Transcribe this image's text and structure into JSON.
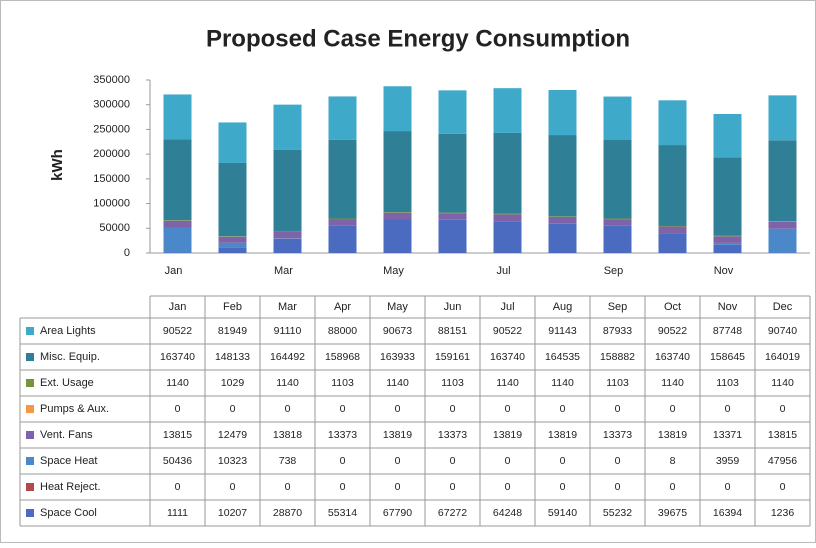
{
  "chart_data": {
    "type": "stacked_bar",
    "title": "Proposed Case Energy Consumption",
    "y_label": "kWh",
    "categories": [
      "Jan",
      "Feb",
      "Mar",
      "Apr",
      "May",
      "Jun",
      "Jul",
      "Aug",
      "Sep",
      "Oct",
      "Nov",
      "Dec"
    ],
    "ylim": [
      0,
      350000
    ],
    "yticks": [
      0,
      50000,
      100000,
      150000,
      200000,
      250000,
      300000,
      350000
    ],
    "series": [
      {
        "name": "Area Lights",
        "color": "#3fa9c9",
        "values": [
          90522,
          81949,
          91110,
          88000,
          90673,
          88151,
          90522,
          91143,
          87933,
          90522,
          87748,
          90740
        ]
      },
      {
        "name": "Misc. Equip.",
        "color": "#2f8096",
        "values": [
          163740,
          148133,
          164492,
          158968,
          163933,
          159161,
          163740,
          164535,
          158882,
          163740,
          158645,
          164019
        ]
      },
      {
        "name": "Ext. Usage",
        "color": "#77933c",
        "values": [
          1140,
          1029,
          1140,
          1103,
          1140,
          1103,
          1140,
          1140,
          1103,
          1140,
          1103,
          1140
        ]
      },
      {
        "name": "Pumps & Aux.",
        "color": "#f79646",
        "values": [
          0,
          0,
          0,
          0,
          0,
          0,
          0,
          0,
          0,
          0,
          0,
          0
        ]
      },
      {
        "name": "Vent. Fans",
        "color": "#7f63a8",
        "values": [
          13815,
          12479,
          13818,
          13373,
          13819,
          13373,
          13819,
          13819,
          13373,
          13819,
          13371,
          13815
        ]
      },
      {
        "name": "Space Heat",
        "color": "#4a88c9",
        "values": [
          50436,
          10323,
          738,
          0,
          0,
          0,
          0,
          0,
          0,
          8,
          3959,
          47956
        ]
      },
      {
        "name": "Heat Reject.",
        "color": "#b04a50",
        "values": [
          0,
          0,
          0,
          0,
          0,
          0,
          0,
          0,
          0,
          0,
          0,
          0
        ]
      },
      {
        "name": "Space Cool",
        "color": "#4a6bc0",
        "values": [
          1111,
          10207,
          28870,
          55314,
          67790,
          67272,
          64248,
          59140,
          55232,
          39675,
          16394,
          1236
        ]
      }
    ]
  }
}
